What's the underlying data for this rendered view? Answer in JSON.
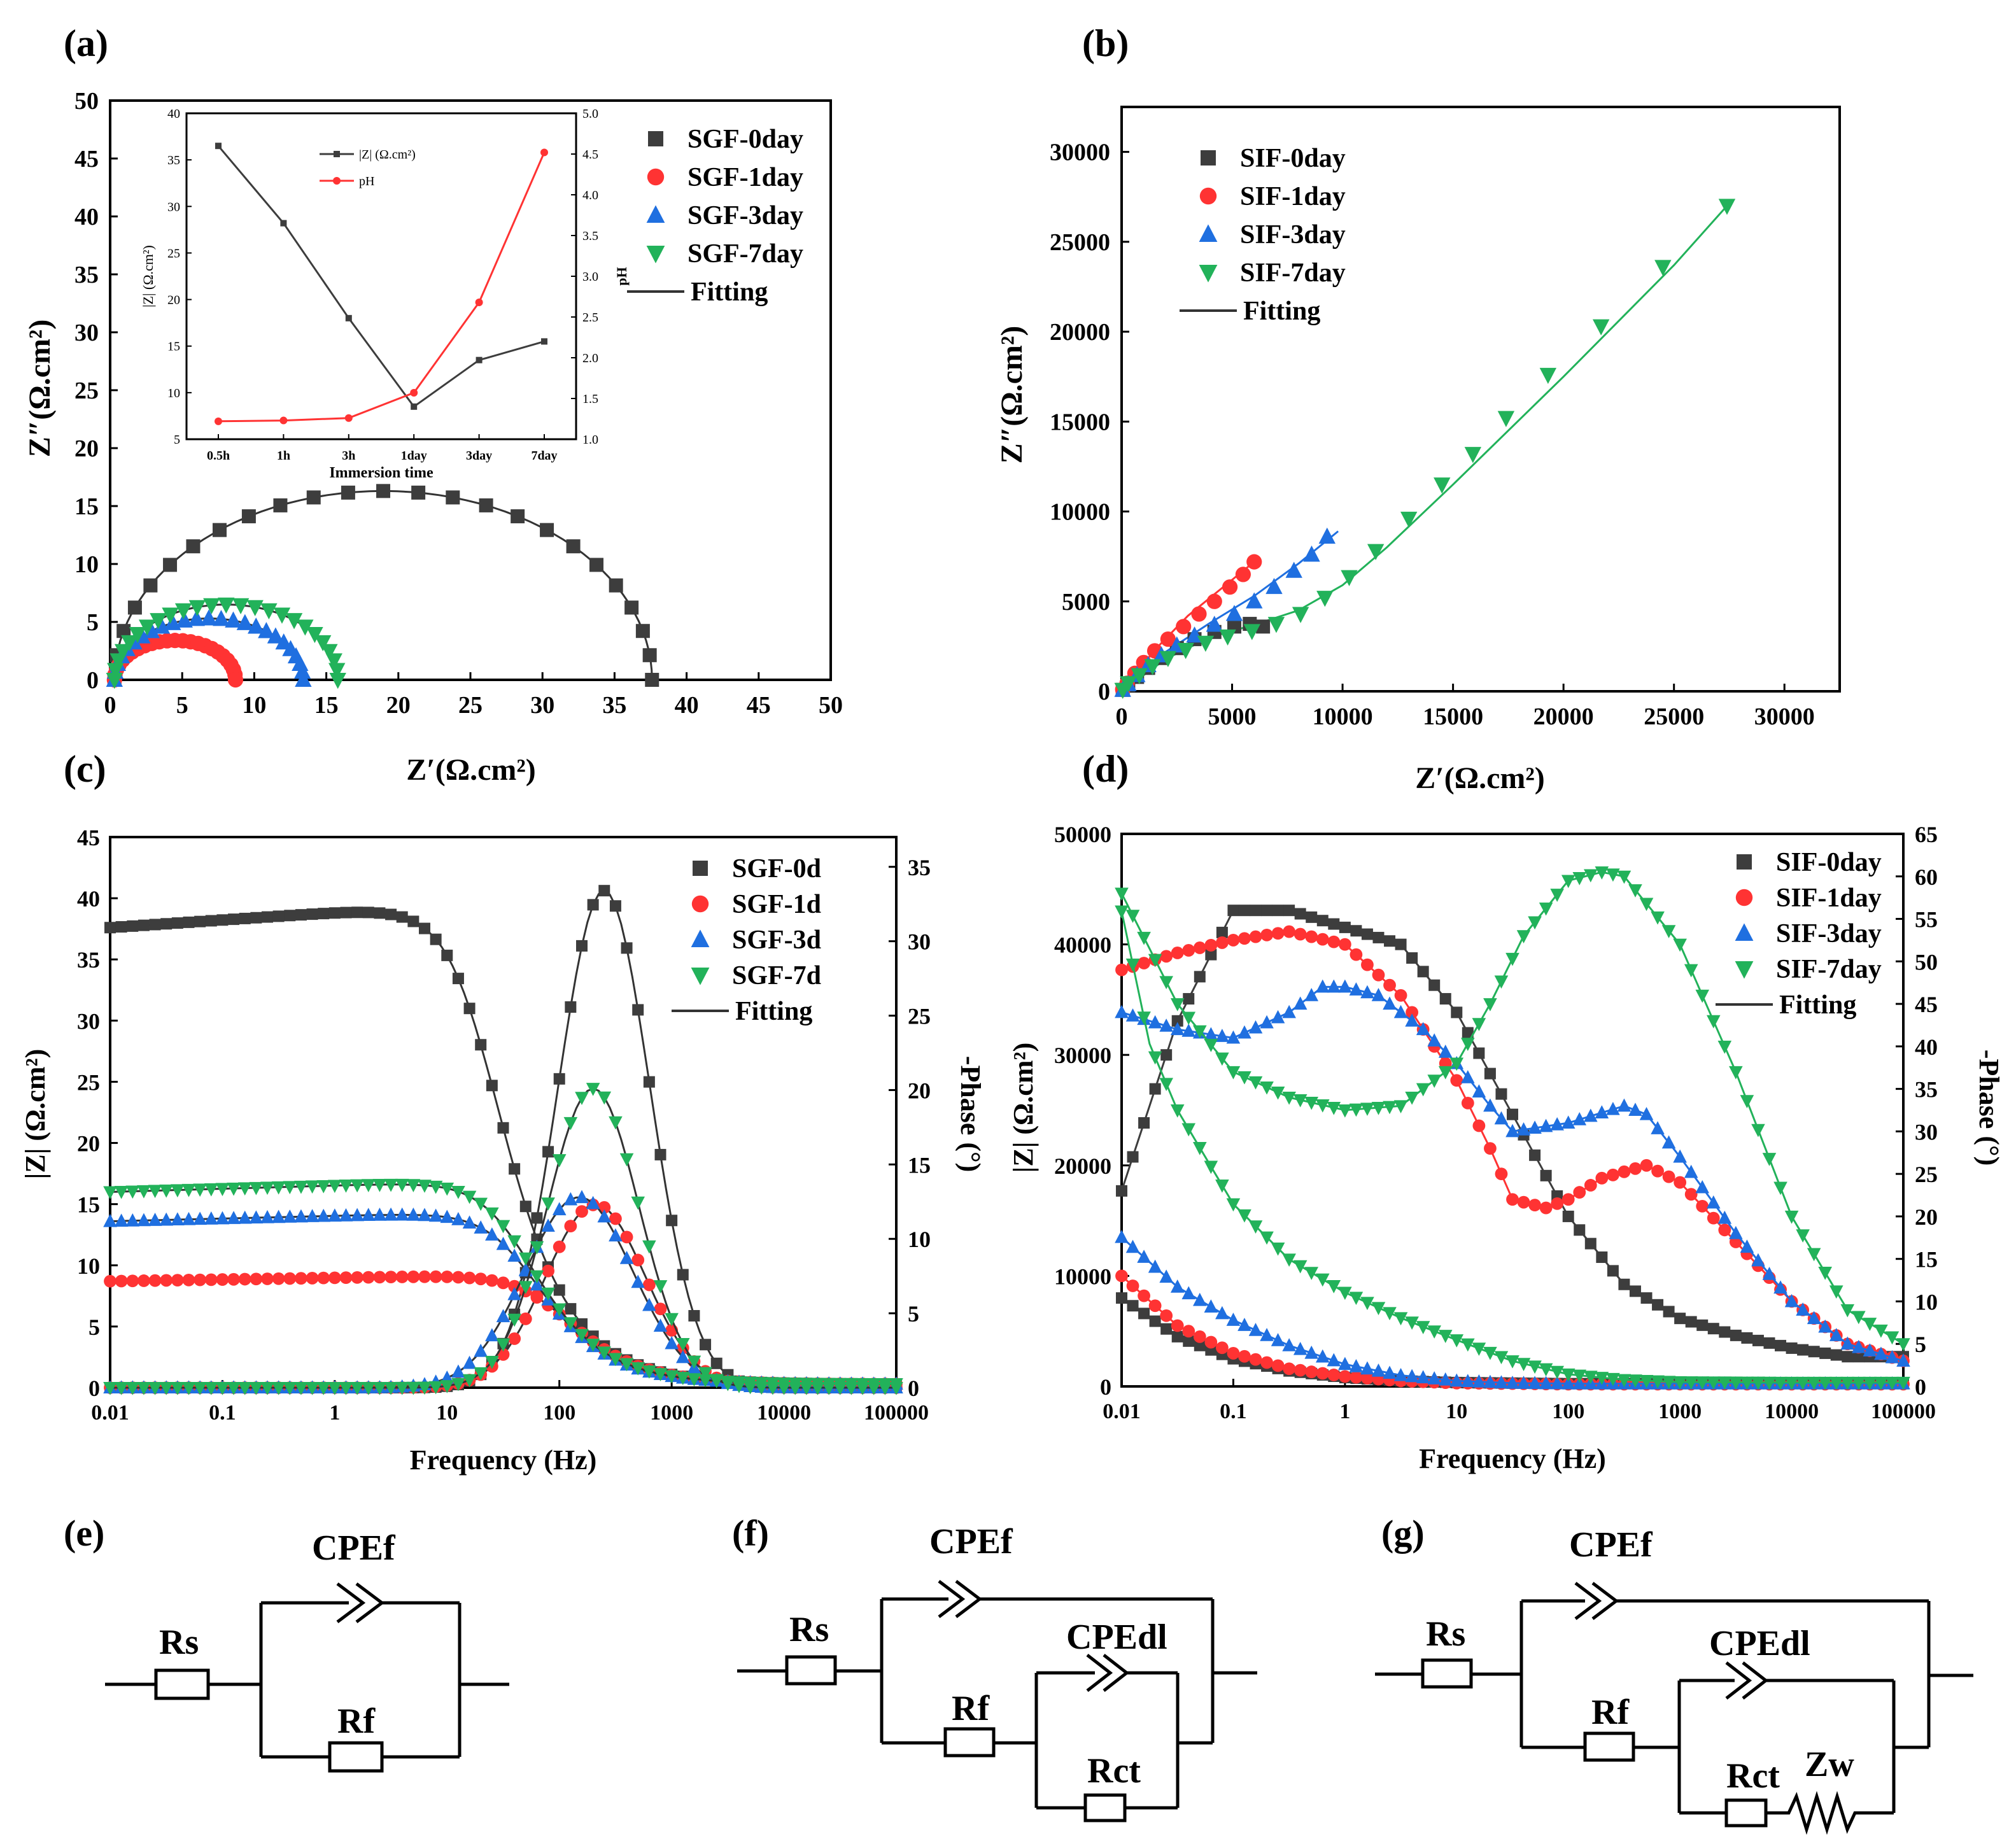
{
  "colors": {
    "axis": "#000000",
    "black": "#3d3d3d",
    "red": "#ff3333",
    "blue": "#1f6fe0",
    "green": "#22b25a",
    "line": "#333333"
  },
  "circuits": {
    "e": {
      "label": "(e)",
      "cpe_f": "CPEf",
      "r_s": "Rs",
      "r_f": "Rf"
    },
    "f": {
      "label": "(f)",
      "cpe_f": "CPEf",
      "cpe_dl": "CPEdl",
      "r_s": "Rs",
      "r_f": "Rf",
      "r_ct": "Rct"
    },
    "g": {
      "label": "(g)",
      "cpe_f": "CPEf",
      "cpe_dl": "CPEdl",
      "r_s": "Rs",
      "r_f": "Rf",
      "r_ct": "Rct",
      "z_w": "Zw"
    }
  },
  "chart_data": [
    {
      "id": "a",
      "panel_label": "(a)",
      "type": "scatter",
      "xlabel": "Z′(Ω.cm²)",
      "ylabel": "Z″(Ω.cm²)",
      "xlim": [
        0,
        50
      ],
      "ylim": [
        0,
        50
      ],
      "xticks": [
        0,
        5,
        10,
        15,
        20,
        25,
        30,
        35,
        40,
        45,
        50
      ],
      "yticks": [
        0,
        5,
        10,
        15,
        20,
        25,
        30,
        35,
        40,
        45,
        50
      ],
      "legend": [
        "SGF-0day",
        "SGF-1day",
        "SGF-3day",
        "SGF-7day",
        "Fitting"
      ],
      "series": [
        {
          "name": "SGF-0day",
          "marker": "square",
          "color": "black",
          "semicircle": {
            "r0": 0.3,
            "r1": 37.6,
            "peak": 16.3
          }
        },
        {
          "name": "SGF-1day",
          "marker": "circle",
          "color": "red",
          "semicircle": {
            "r0": 0.3,
            "r1": 8.7,
            "peak": 3.4
          }
        },
        {
          "name": "SGF-3day",
          "marker": "triangle-up",
          "color": "blue",
          "semicircle": {
            "r0": 0.3,
            "r1": 13.4,
            "peak": 5.3
          }
        },
        {
          "name": "SGF-7day",
          "marker": "triangle-down",
          "color": "green",
          "semicircle": {
            "r0": 0.3,
            "r1": 15.8,
            "peak": 6.5
          }
        }
      ],
      "inset": {
        "type": "line",
        "categories": [
          "0.5h",
          "1h",
          "3h",
          "1day",
          "3day",
          "7day"
        ],
        "xlabel": "Immersion time",
        "ylabel": "|Z| (Ω.cm²)",
        "y2label": "pH",
        "ylim": [
          5,
          40
        ],
        "y2lim": [
          1.0,
          5.0
        ],
        "yticks": [
          5,
          10,
          15,
          20,
          25,
          30,
          35,
          40
        ],
        "y2ticks": [
          "1.0",
          "1.5",
          "2.0",
          "2.5",
          "3.0",
          "3.5",
          "4.0",
          "4.5",
          "5.0"
        ],
        "legend": [
          "|Z| (Ω.cm²)",
          "pH"
        ],
        "series": [
          {
            "name": "|Z| (Ω.cm²)",
            "axis": "left",
            "color": "black",
            "values": [
              36.5,
              28.2,
              18.0,
              8.5,
              13.5,
              15.5
            ]
          },
          {
            "name": "pH",
            "axis": "right",
            "color": "red",
            "values": [
              1.22,
              1.23,
              1.26,
              1.57,
              2.68,
              4.52
            ]
          }
        ]
      }
    },
    {
      "id": "b",
      "panel_label": "(b)",
      "type": "scatter",
      "xlabel": "Z′(Ω.cm²)",
      "ylabel": "Z″(Ω.cm²)",
      "xlim": [
        0,
        32500
      ],
      "ylim": [
        0,
        32500
      ],
      "xticks": [
        0,
        5000,
        10000,
        15000,
        20000,
        25000,
        30000
      ],
      "yticks": [
        0,
        5000,
        10000,
        15000,
        20000,
        25000,
        30000
      ],
      "legend": [
        "SIF-0day",
        "SIF-1day",
        "SIF-3day",
        "SIF-7day",
        "Fitting"
      ],
      "series": [
        {
          "name": "SIF-0day",
          "marker": "square",
          "color": "black",
          "x": [
            50,
            300,
            700,
            1200,
            1800,
            2500,
            3300,
            4200,
            5100,
            5800,
            6400
          ],
          "y": [
            80,
            350,
            800,
            1300,
            1850,
            2400,
            2900,
            3300,
            3600,
            3750,
            3600
          ]
        },
        {
          "name": "SIF-1day",
          "marker": "circle",
          "color": "red",
          "x": [
            50,
            250,
            600,
            1000,
            1500,
            2100,
            2800,
            3500,
            4200,
            4900,
            5500,
            6000
          ],
          "y": [
            100,
            450,
            1000,
            1600,
            2250,
            2900,
            3600,
            4300,
            5000,
            5800,
            6500,
            7200
          ]
        },
        {
          "name": "SIF-3day",
          "marker": "triangle-up",
          "color": "blue",
          "x": [
            50,
            300,
            700,
            1200,
            1800,
            2500,
            3300,
            4200,
            5100,
            6000,
            6900,
            7800,
            8600,
            9300
          ],
          "y": [
            80,
            400,
            900,
            1450,
            2000,
            2550,
            3100,
            3700,
            4300,
            5000,
            5800,
            6700,
            7600,
            8600
          ]
        },
        {
          "name": "SIF-7day",
          "marker": "triangle-down",
          "color": "green",
          "x": [
            50,
            300,
            800,
            1400,
            2100,
            2900,
            3800,
            4800,
            5900,
            7000,
            8100,
            9200,
            10300,
            11500,
            13000,
            14500,
            15900,
            17400,
            19300,
            21700,
            24500,
            27400
          ],
          "y": [
            80,
            450,
            900,
            1400,
            1850,
            2300,
            2700,
            3050,
            3350,
            3750,
            4300,
            5200,
            6350,
            7800,
            9600,
            11500,
            13200,
            15200,
            17600,
            20300,
            23600,
            27000
          ]
        }
      ],
      "fits": [
        {
          "color": "red",
          "x": [
            0,
            1500,
            3000,
            4500,
            6000
          ],
          "y": [
            0,
            2300,
            4200,
            5700,
            7200
          ]
        },
        {
          "color": "blue",
          "x": [
            0,
            2000,
            4000,
            6000,
            8000,
            9800
          ],
          "y": [
            0,
            2200,
            3800,
            5300,
            7100,
            8900
          ]
        },
        {
          "color": "green",
          "x": [
            0,
            2000,
            4000,
            6000,
            8000,
            10000,
            12000,
            15000,
            20000,
            25000,
            27400
          ],
          "y": [
            0,
            1800,
            3000,
            3700,
            4500,
            5900,
            8000,
            11500,
            17500,
            23700,
            27000
          ]
        }
      ]
    },
    {
      "id": "c",
      "panel_label": "(c)",
      "type": "line",
      "xlabel": "Frequency (Hz)",
      "ylabel": "|Z| (Ω.cm²)",
      "y2label": "-Phase (°)",
      "xscale": "log",
      "xlim": [
        0.01,
        100000
      ],
      "ylim": [
        0,
        45
      ],
      "y2lim": [
        0,
        37
      ],
      "xticks": [
        "0.01",
        "0.1",
        "1",
        "10",
        "100",
        "1000",
        "10000",
        "100000"
      ],
      "yticks": [
        0,
        5,
        10,
        15,
        20,
        25,
        30,
        35,
        40,
        45
      ],
      "y2ticks": [
        0,
        5,
        10,
        15,
        20,
        25,
        30,
        35
      ],
      "legend": [
        "SGF-0d",
        "SGF-1d",
        "SGF-3d",
        "SGF-7d",
        "Fitting"
      ],
      "series": [
        {
          "name": "SGF-0d",
          "marker": "square",
          "color": "black",
          "modZ": {
            "r0": 0.3,
            "r1": 37.6,
            "fc": 20
          },
          "phase": {
            "peak": 33.4,
            "f": 250,
            "w": 0.55
          },
          "mod_label": "|Z|",
          "phase_label": "-Phase"
        },
        {
          "name": "SGF-1d",
          "marker": "circle",
          "color": "red",
          "modZ": {
            "r0": 0.3,
            "r1": 8.7,
            "fc": 85
          },
          "phase": {
            "peak": 12.3,
            "f": 210,
            "w": 0.6
          },
          "mod_label": "|Z|",
          "phase_label": "-Phase"
        },
        {
          "name": "SGF-3d",
          "marker": "triangle-up",
          "color": "blue",
          "modZ": {
            "r0": 0.3,
            "r1": 13.6,
            "fc": 45
          },
          "phase": {
            "peak": 12.8,
            "f": 150,
            "w": 0.65
          },
          "mod_label": "|Z|",
          "phase_label": "-Phase"
        },
        {
          "name": "SGF-7d",
          "marker": "triangle-down",
          "color": "green",
          "modZ": {
            "r0": 0.3,
            "r1": 16.0,
            "fc": 40
          },
          "phase": {
            "peak": 20.1,
            "f": 200,
            "w": 0.55
          },
          "mod_label": "|Z|",
          "phase_label": "-Phase"
        }
      ]
    },
    {
      "id": "d",
      "panel_label": "(d)",
      "type": "line",
      "xlabel": "Frequency (Hz)",
      "ylabel": "|Z| (Ω.cm²)",
      "y2label": "-Phase (°)",
      "xscale": "log",
      "xlim": [
        0.01,
        100000
      ],
      "ylim": [
        0,
        50000
      ],
      "y2lim": [
        0,
        65
      ],
      "xticks": [
        "0.01",
        "0.1",
        "1",
        "10",
        "100",
        "1000",
        "10000",
        "100000"
      ],
      "yticks": [
        0,
        10000,
        20000,
        30000,
        40000,
        50000
      ],
      "y2ticks": [
        0,
        5,
        10,
        15,
        20,
        25,
        30,
        35,
        40,
        45,
        50,
        55,
        60,
        65
      ],
      "legend": [
        "SIF-0day",
        "SIF-1day",
        "SIF-3day",
        "SIF-7day",
        "Fitting"
      ],
      "series": [
        {
          "name": "SIF-0day",
          "marker": "square",
          "color": "black",
          "phase_pts": [
            [
              -2,
              23
            ],
            [
              -1.5,
              43
            ],
            [
              -1,
              56
            ],
            [
              -0.5,
              56
            ],
            [
              0,
              54
            ],
            [
              0.5,
              52
            ],
            [
              1,
              44
            ],
            [
              1.5,
              32
            ],
            [
              2,
              20
            ],
            [
              2.5,
              12
            ],
            [
              3,
              8
            ],
            [
              3.5,
              6
            ],
            [
              4,
              4.5
            ],
            [
              4.5,
              3.5
            ],
            [
              5,
              3.5
            ]
          ],
          "modZ_pts": [
            [
              -2,
              8000
            ],
            [
              -1.5,
              4500
            ],
            [
              -1,
              2500
            ],
            [
              -0.5,
              1400
            ],
            [
              0,
              800
            ],
            [
              0.5,
              500
            ],
            [
              1,
              350
            ],
            [
              2,
              250
            ],
            [
              3,
              250
            ],
            [
              4,
              250
            ],
            [
              5,
              250
            ]
          ]
        },
        {
          "name": "SIF-1day",
          "marker": "circle",
          "color": "red",
          "phase_pts": [
            [
              -2,
              49
            ],
            [
              -1.5,
              51
            ],
            [
              -1,
              52.5
            ],
            [
              -0.5,
              53.5
            ],
            [
              0,
              52
            ],
            [
              0.5,
              46
            ],
            [
              1,
              36
            ],
            [
              1.3,
              28
            ],
            [
              1.5,
              22
            ],
            [
              1.8,
              21
            ],
            [
              2,
              22
            ],
            [
              2.3,
              24.5
            ],
            [
              2.7,
              26
            ],
            [
              3,
              24
            ],
            [
              3.5,
              17
            ],
            [
              4,
              10
            ],
            [
              4.5,
              5
            ],
            [
              5,
              3
            ]
          ],
          "modZ_pts": [
            [
              -2,
              10000
            ],
            [
              -1.5,
              5500
            ],
            [
              -1,
              3000
            ],
            [
              -0.5,
              1600
            ],
            [
              0,
              900
            ],
            [
              0.5,
              500
            ],
            [
              1,
              300
            ],
            [
              2,
              200
            ],
            [
              3,
              200
            ],
            [
              4,
              200
            ],
            [
              5,
              200
            ]
          ]
        },
        {
          "name": "SIF-3day",
          "marker": "triangle-up",
          "color": "blue",
          "phase_pts": [
            [
              -2,
              44
            ],
            [
              -1.5,
              42
            ],
            [
              -1,
              41
            ],
            [
              -0.5,
              44
            ],
            [
              -0.2,
              47
            ],
            [
              0,
              47
            ],
            [
              0.3,
              46
            ],
            [
              0.7,
              42
            ],
            [
              1,
              38
            ],
            [
              1.3,
              33
            ],
            [
              1.5,
              30
            ],
            [
              2,
              31
            ],
            [
              2.5,
              33
            ],
            [
              2.7,
              32
            ],
            [
              3,
              27
            ],
            [
              3.5,
              18
            ],
            [
              4,
              10
            ],
            [
              4.5,
              5
            ],
            [
              5,
              3
            ]
          ],
          "modZ_pts": [
            [
              -2,
              13500
            ],
            [
              -1.5,
              9000
            ],
            [
              -1,
              6000
            ],
            [
              -0.5,
              3700
            ],
            [
              0,
              2000
            ],
            [
              0.5,
              1000
            ],
            [
              1,
              500
            ],
            [
              1.5,
              300
            ],
            [
              2,
              250
            ],
            [
              3,
              250
            ],
            [
              4,
              250
            ],
            [
              5,
              250
            ]
          ]
        },
        {
          "name": "SIF-7day",
          "marker": "triangle-down",
          "color": "green",
          "phase_pts": [
            [
              -2,
              58
            ],
            [
              -1.5,
              45
            ],
            [
              -1,
              37
            ],
            [
              -0.5,
              34
            ],
            [
              0,
              32.5
            ],
            [
              0.5,
              33
            ],
            [
              1,
              38
            ],
            [
              1.3,
              45
            ],
            [
              1.6,
              53
            ],
            [
              2,
              59.5
            ],
            [
              2.3,
              60.5
            ],
            [
              2.5,
              60
            ],
            [
              3,
              52
            ],
            [
              3.5,
              37
            ],
            [
              4,
              20
            ],
            [
              4.5,
              9
            ],
            [
              5,
              5
            ]
          ],
          "modZ_pts": [
            [
              -2,
              43000
            ],
            [
              -1.75,
              31000
            ],
            [
              -1.5,
              25000
            ],
            [
              -1,
              16500
            ],
            [
              -0.5,
              11500
            ],
            [
              0,
              8500
            ],
            [
              0.5,
              6200
            ],
            [
              1,
              4200
            ],
            [
              1.5,
              2300
            ],
            [
              2,
              1100
            ],
            [
              2.5,
              600
            ],
            [
              3,
              400
            ],
            [
              4,
              350
            ],
            [
              5,
              350
            ]
          ]
        }
      ]
    }
  ]
}
